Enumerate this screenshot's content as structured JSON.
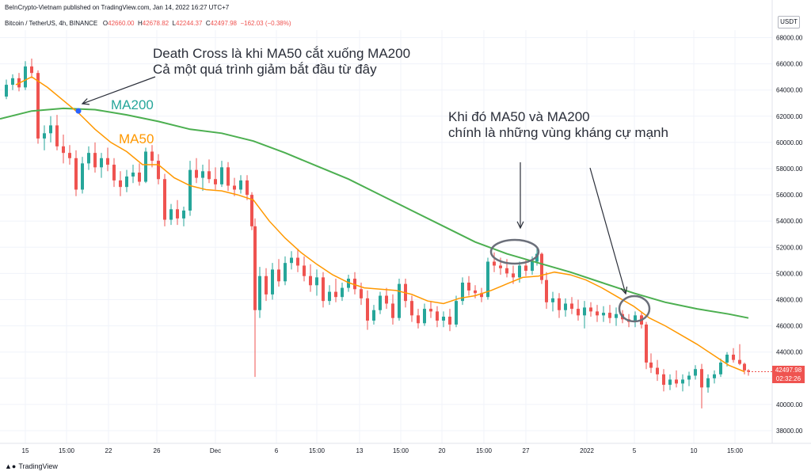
{
  "header": {
    "published": "BeInCrypto-Vietnam published on TradingView.com, Jan 14, 2022 16:27 UTC+7"
  },
  "symbol": {
    "name": "Bitcoin / TetherUS, 4h, BINANCE",
    "o_label": "O",
    "o": "42660.00",
    "h_label": "H",
    "h": "42678.82",
    "l_label": "L",
    "l": "42244.37",
    "c_label": "C",
    "c": "42497.98",
    "change": "−162.03 (−0.38%)"
  },
  "currency": "USDT",
  "price_tag": {
    "price": "42497.98",
    "countdown": "02:32:26"
  },
  "annotations": {
    "death_cross_line1": "Death Cross là khi MA50 cắt xuống MA200",
    "death_cross_line2": "Cả một quá trình giảm bắt đầu từ đây",
    "resistance_line1": "Khi đó MA50 và MA200",
    "resistance_line2": "chính là những vùng kháng cự mạnh",
    "ma200_label": "MA200",
    "ma50_label": "MA50"
  },
  "footer": {
    "brand": "TradingView"
  },
  "colors": {
    "up": "#26a69a",
    "down": "#ef5350",
    "ma200": "#4caf50",
    "ma50": "#ff9800",
    "grid": "#f0f3fa",
    "axis_text": "#131722",
    "ellipse": "#6b6f7a"
  },
  "chart_data": {
    "type": "candlestick",
    "y_axis": {
      "min": 37000,
      "max": 69000,
      "ticks": [
        "38000.00",
        "40000.00",
        "42000.00",
        "44000.00",
        "46000.00",
        "48000.00",
        "50000.00",
        "52000.00",
        "54000.00",
        "56000.00",
        "58000.00",
        "60000.00",
        "62000.00",
        "64000.00",
        "66000.00",
        "68000.00"
      ]
    },
    "x_axis": {
      "ticks": [
        "15",
        "15:00",
        "22",
        "26",
        "Dec",
        "6",
        "15:00",
        "13",
        "15:00",
        "20",
        "15:00",
        "27",
        "2022",
        "5",
        "10",
        "15:00"
      ]
    },
    "ma200": [
      [
        0,
        61800
      ],
      [
        40,
        62400
      ],
      [
        80,
        62600
      ],
      [
        120,
        62500
      ],
      [
        160,
        62100
      ],
      [
        200,
        61600
      ],
      [
        240,
        61000
      ],
      [
        280,
        60700
      ],
      [
        320,
        60100
      ],
      [
        360,
        59200
      ],
      [
        400,
        58200
      ],
      [
        440,
        57200
      ],
      [
        480,
        56000
      ],
      [
        520,
        54800
      ],
      [
        560,
        53600
      ],
      [
        600,
        52400
      ],
      [
        640,
        51500
      ],
      [
        680,
        50800
      ],
      [
        720,
        50100
      ],
      [
        760,
        49300
      ],
      [
        800,
        48500
      ],
      [
        840,
        47800
      ],
      [
        880,
        47300
      ],
      [
        920,
        46900
      ],
      [
        945,
        46600
      ]
    ],
    "ma50": [
      [
        20,
        64400
      ],
      [
        40,
        65000
      ],
      [
        60,
        64200
      ],
      [
        80,
        63200
      ],
      [
        100,
        62200
      ],
      [
        120,
        61000
      ],
      [
        140,
        60000
      ],
      [
        160,
        59300
      ],
      [
        180,
        58300
      ],
      [
        200,
        58300
      ],
      [
        220,
        57300
      ],
      [
        240,
        56700
      ],
      [
        260,
        56400
      ],
      [
        280,
        56300
      ],
      [
        300,
        56000
      ],
      [
        320,
        55600
      ],
      [
        340,
        54000
      ],
      [
        360,
        52700
      ],
      [
        380,
        51600
      ],
      [
        400,
        50700
      ],
      [
        420,
        49900
      ],
      [
        440,
        49300
      ],
      [
        460,
        48900
      ],
      [
        480,
        48800
      ],
      [
        500,
        48700
      ],
      [
        520,
        48400
      ],
      [
        540,
        47900
      ],
      [
        560,
        47700
      ],
      [
        580,
        48100
      ],
      [
        600,
        48300
      ],
      [
        620,
        48700
      ],
      [
        640,
        49200
      ],
      [
        660,
        49700
      ],
      [
        680,
        49800
      ],
      [
        700,
        50100
      ],
      [
        720,
        49900
      ],
      [
        740,
        49500
      ],
      [
        760,
        48900
      ],
      [
        780,
        48200
      ],
      [
        800,
        47500
      ],
      [
        820,
        46600
      ],
      [
        840,
        46000
      ],
      [
        860,
        45300
      ],
      [
        880,
        44600
      ],
      [
        900,
        43800
      ],
      [
        920,
        43000
      ],
      [
        940,
        42500
      ]
    ],
    "candles": [
      [
        8,
        63500,
        64800,
        63300,
        64400
      ],
      [
        16,
        64400,
        65200,
        64000,
        64900
      ],
      [
        24,
        64900,
        65300,
        63900,
        64200
      ],
      [
        32,
        64200,
        66200,
        64000,
        65800
      ],
      [
        40,
        65800,
        66400,
        64900,
        65300
      ],
      [
        48,
        65300,
        65500,
        59900,
        60300
      ],
      [
        56,
        60300,
        61300,
        59400,
        60700
      ],
      [
        64,
        60700,
        62000,
        60000,
        61300
      ],
      [
        72,
        61300,
        62100,
        59400,
        59700
      ],
      [
        80,
        59700,
        60600,
        58400,
        59200
      ],
      [
        88,
        59200,
        59800,
        58300,
        58800
      ],
      [
        96,
        58800,
        59400,
        55900,
        56400
      ],
      [
        104,
        56400,
        58900,
        56100,
        58400
      ],
      [
        112,
        58400,
        59700,
        57900,
        59200
      ],
      [
        120,
        59200,
        60000,
        57700,
        58100
      ],
      [
        128,
        58100,
        59200,
        57300,
        58800
      ],
      [
        136,
        58800,
        59600,
        57800,
        58300
      ],
      [
        144,
        58300,
        58800,
        56600,
        57100
      ],
      [
        152,
        57100,
        57800,
        55900,
        56600
      ],
      [
        160,
        56600,
        57900,
        56200,
        57400
      ],
      [
        168,
        57400,
        58300,
        56900,
        57700
      ],
      [
        176,
        57700,
        58400,
        56700,
        57000
      ],
      [
        184,
        57000,
        59600,
        56900,
        59300
      ],
      [
        192,
        59300,
        59800,
        58100,
        58600
      ],
      [
        200,
        58600,
        59100,
        56800,
        57200
      ],
      [
        208,
        57200,
        57600,
        53600,
        54100
      ],
      [
        216,
        54100,
        55300,
        53700,
        54900
      ],
      [
        224,
        54900,
        55600,
        53700,
        54200
      ],
      [
        232,
        54200,
        55100,
        53600,
        54800
      ],
      [
        240,
        54800,
        58600,
        54400,
        57900
      ],
      [
        248,
        57900,
        58800,
        56900,
        57300
      ],
      [
        256,
        57300,
        58300,
        56300,
        57800
      ],
      [
        264,
        57800,
        58700,
        56900,
        57200
      ],
      [
        272,
        57200,
        58100,
        56400,
        56800
      ],
      [
        280,
        56800,
        58600,
        56600,
        58100
      ],
      [
        288,
        58100,
        58500,
        56300,
        56700
      ],
      [
        296,
        56700,
        57300,
        55900,
        56400
      ],
      [
        304,
        56400,
        57500,
        56100,
        57100
      ],
      [
        312,
        57100,
        57500,
        55600,
        56000
      ],
      [
        318,
        56000,
        56200,
        53300,
        53600
      ],
      [
        322,
        53600,
        54200,
        42100,
        47200
      ],
      [
        328,
        47200,
        50500,
        46600,
        49800
      ],
      [
        336,
        49800,
        50400,
        47900,
        48400
      ],
      [
        344,
        48400,
        50800,
        48000,
        50300
      ],
      [
        352,
        50300,
        51100,
        49000,
        49400
      ],
      [
        360,
        49400,
        51300,
        49100,
        50800
      ],
      [
        368,
        50800,
        51700,
        50300,
        51200
      ],
      [
        376,
        51200,
        51900,
        50100,
        50600
      ],
      [
        384,
        50600,
        51300,
        49400,
        49800
      ],
      [
        392,
        49800,
        50700,
        48600,
        49100
      ],
      [
        400,
        49100,
        50300,
        48300,
        49700
      ],
      [
        408,
        49700,
        50100,
        47400,
        47900
      ],
      [
        416,
        47900,
        49100,
        47600,
        48600
      ],
      [
        424,
        48600,
        49600,
        47800,
        48200
      ],
      [
        432,
        48200,
        49300,
        47900,
        48900
      ],
      [
        440,
        48900,
        49900,
        48600,
        49600
      ],
      [
        448,
        49600,
        50100,
        48400,
        48800
      ],
      [
        456,
        48800,
        49300,
        47600,
        48100
      ],
      [
        464,
        48100,
        48700,
        45700,
        46400
      ],
      [
        472,
        46400,
        47600,
        46100,
        47200
      ],
      [
        480,
        47200,
        48600,
        46900,
        48300
      ],
      [
        488,
        48300,
        48900,
        47300,
        47700
      ],
      [
        496,
        47700,
        48400,
        46100,
        46600
      ],
      [
        504,
        46600,
        49600,
        46400,
        49200
      ],
      [
        512,
        49200,
        49600,
        47400,
        47900
      ],
      [
        520,
        47900,
        48300,
        46300,
        46800
      ],
      [
        528,
        46800,
        47300,
        45800,
        46200
      ],
      [
        536,
        46200,
        47700,
        46000,
        47300
      ],
      [
        544,
        47300,
        47900,
        46600,
        47100
      ],
      [
        552,
        47100,
        47500,
        45900,
        46400
      ],
      [
        560,
        46400,
        47100,
        45900,
        46700
      ],
      [
        568,
        46700,
        47300,
        45600,
        46100
      ],
      [
        576,
        46100,
        48300,
        45900,
        47900
      ],
      [
        584,
        47900,
        49700,
        47600,
        49300
      ],
      [
        592,
        49300,
        49800,
        48300,
        48700
      ],
      [
        600,
        48700,
        49100,
        48100,
        48500
      ],
      [
        608,
        48500,
        48900,
        47800,
        48200
      ],
      [
        616,
        48200,
        51200,
        48000,
        50900
      ],
      [
        624,
        50900,
        51600,
        50100,
        50600
      ],
      [
        632,
        50600,
        51200,
        49900,
        50400
      ],
      [
        640,
        50400,
        51100,
        49700,
        50000
      ],
      [
        648,
        50000,
        50600,
        49200,
        49700
      ],
      [
        656,
        49700,
        50900,
        49300,
        50600
      ],
      [
        664,
        50600,
        51100,
        49800,
        50200
      ],
      [
        672,
        50200,
        51300,
        49900,
        50900
      ],
      [
        678,
        50900,
        52000,
        50600,
        51500
      ],
      [
        684,
        51500,
        51600,
        49200,
        49500
      ],
      [
        690,
        49500,
        50100,
        47300,
        47800
      ],
      [
        698,
        47800,
        48600,
        47100,
        48100
      ],
      [
        706,
        48100,
        48500,
        46600,
        47200
      ],
      [
        714,
        47200,
        48100,
        46700,
        47700
      ],
      [
        722,
        47700,
        48200,
        46900,
        47300
      ],
      [
        730,
        47300,
        48000,
        46400,
        46800
      ],
      [
        738,
        46800,
        47900,
        45800,
        47400
      ],
      [
        746,
        47400,
        47800,
        46700,
        47100
      ],
      [
        754,
        47100,
        47600,
        46300,
        46800
      ],
      [
        762,
        46800,
        47500,
        46300,
        47000
      ],
      [
        770,
        47000,
        47600,
        46200,
        46600
      ],
      [
        778,
        46600,
        47400,
        46000,
        46900
      ],
      [
        786,
        46900,
        47200,
        46200,
        46500
      ],
      [
        794,
        46500,
        46900,
        45900,
        46300
      ],
      [
        802,
        46300,
        47100,
        45900,
        46800
      ],
      [
        810,
        46800,
        47100,
        45800,
        46100
      ],
      [
        816,
        46100,
        46300,
        42700,
        43200
      ],
      [
        822,
        43200,
        43900,
        42400,
        42800
      ],
      [
        830,
        42800,
        43400,
        41800,
        42300
      ],
      [
        838,
        42300,
        42700,
        41000,
        41500
      ],
      [
        846,
        41500,
        42300,
        41100,
        41900
      ],
      [
        854,
        41900,
        42600,
        41300,
        41600
      ],
      [
        862,
        41600,
        42300,
        41000,
        41900
      ],
      [
        870,
        41900,
        42500,
        41400,
        42200
      ],
      [
        878,
        42200,
        43000,
        41900,
        42700
      ],
      [
        886,
        42700,
        43100,
        39700,
        41300
      ],
      [
        894,
        41300,
        42300,
        40900,
        42000
      ],
      [
        902,
        42000,
        42600,
        41600,
        42300
      ],
      [
        910,
        42300,
        43500,
        42100,
        43200
      ],
      [
        918,
        43200,
        44000,
        42900,
        43800
      ],
      [
        926,
        43800,
        44300,
        43200,
        43400
      ],
      [
        934,
        43400,
        44600,
        43000,
        43100
      ],
      [
        940,
        43100,
        43200,
        42300,
        42600
      ],
      [
        945,
        42600,
        42700,
        42200,
        42500
      ]
    ]
  }
}
